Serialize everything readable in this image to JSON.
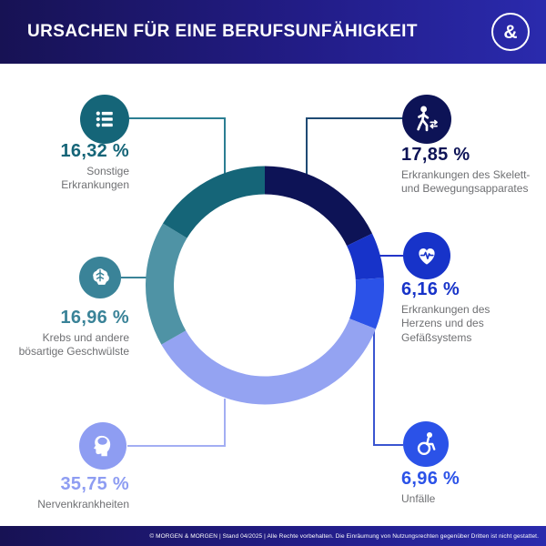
{
  "header": {
    "title": "URSACHEN FÜR EINE BERUFSUNFÄHIGKEIT",
    "logo_glyph": "&"
  },
  "footer": {
    "text": "© MORGEN & MORGEN | Stand 04/2025 | Alle Rechte vorbehalten. Die Einräumung von Nutzungsrechten gegenüber Dritten ist nicht gestattet."
  },
  "chart_data": {
    "type": "pie",
    "subtype": "donut",
    "title": "Ursachen für eine Berufsunfähigkeit",
    "unit": "%",
    "total": 100,
    "start_angle_deg": 0,
    "direction": "clockwise",
    "legend_position": "callouts-around-donut",
    "segments": [
      {
        "label": "Erkrankungen des Skelett- und Bewegungsapparates",
        "value": 17.85,
        "display_value": "17,85 %",
        "color": "#0d1356",
        "icon_color": "#0d1356",
        "connector_color": "#1f4a73",
        "icon": "walking-person-icon"
      },
      {
        "label": "Erkrankungen des Herzens und des Gefäßsystems",
        "value": 6.16,
        "display_value": "6,16 %",
        "color": "#1733c9",
        "icon_color": "#1733c9",
        "connector_color": "#2335c8",
        "icon": "heart-pulse-icon"
      },
      {
        "label": "Unfälle",
        "value": 6.96,
        "display_value": "6,96 %",
        "color": "#2b52e8",
        "icon_color": "#2b52e8",
        "connector_color": "#3a55d0",
        "icon": "wheelchair-icon"
      },
      {
        "label": "Nervenkrankheiten",
        "value": 35.75,
        "display_value": "35,75 %",
        "color": "#94a3f2",
        "icon_color": "#8e9df2",
        "connector_color": "#a3aef3",
        "icon": "head-silhouette-icon"
      },
      {
        "label": "Krebs und andere bösartige Geschwülste",
        "value": 16.96,
        "display_value": "16,96 %",
        "color": "#4f93a5",
        "icon_color": "#3a8398",
        "connector_color": "#3a8398",
        "icon": "brain-icon"
      },
      {
        "label": "Sonstige Erkrankungen",
        "value": 16.32,
        "display_value": "16,32 %",
        "color": "#156578",
        "icon_color": "#156578",
        "connector_color": "#2b7e92",
        "icon": "bullet-list-icon"
      }
    ]
  }
}
